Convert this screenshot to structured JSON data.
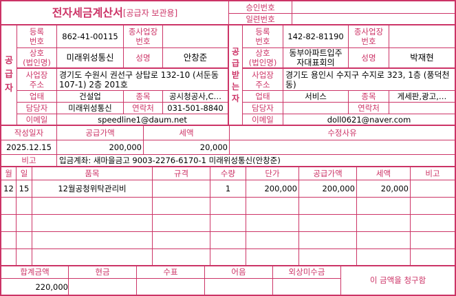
{
  "header": {
    "title": "전자세금계산서",
    "subtitle": "[공급자 보관용]",
    "approval_label": "승인번호",
    "approval_value": "",
    "serial_label": "일련번호",
    "serial_value": ""
  },
  "supplier": {
    "section_label": "공\n급\n자",
    "reg_label": "등록\n번호",
    "reg_value": "862-41-00115",
    "sub_label": "종사업장\n번호",
    "sub_value": "",
    "name_label": "상호\n(법인명)",
    "name_value": "미래위성통신",
    "rep_label": "성명",
    "rep_value": "안창준",
    "addr_label": "사업장\n주소",
    "addr_value": "경기도 수원시 권선구 상탑로 132-10 (서둔동 107-1) 2층 201호",
    "biz_label": "업태",
    "biz_value": "건설업",
    "item_label": "종목",
    "item_value": "공시청공사,C…",
    "contact_label": "담당자",
    "contact_value": "미래위성통신",
    "phone_label": "연락처",
    "phone_value": "031-501-8840",
    "email_label": "이메일",
    "email_value": "speedline1@daum.net"
  },
  "receiver": {
    "section_label": "공\n급\n받\n는\n자",
    "reg_label": "등록\n번호",
    "reg_value": "142-82-81190",
    "sub_label": "종사업장\n번호",
    "sub_value": "",
    "name_label": "상호\n(법인명)",
    "name_value": "동부아파트입주\n자대표회의",
    "rep_label": "성명",
    "rep_value": "박재현",
    "addr_label": "사업장\n주소",
    "addr_value": "경기도 용인시 수지구 수지로 323, 1층 (풍덕천동)",
    "biz_label": "업태",
    "biz_value": "서비스",
    "item_label": "종목",
    "item_value": "게세판,광고,…",
    "contact_label": "담당자",
    "contact_value": "",
    "phone_label": "연락처",
    "phone_value": "",
    "email_label": "이메일",
    "email_value": "doll0621@naver.com"
  },
  "summary": {
    "date_label": "작성일자",
    "date_value": "2025.12.15",
    "supply_label": "공급가액",
    "supply_value": "200,000",
    "tax_label": "세액",
    "tax_value": "20,000",
    "reason_label": "수정사유",
    "reason_value": "",
    "note_label": "비고",
    "note_value": "입금계좌: 새마을금고 9003-2276-6170-1 미래위성통신(안창준)"
  },
  "items": {
    "headers": [
      "월",
      "일",
      "품목",
      "규격",
      "수량",
      "단가",
      "공급가액",
      "세액",
      "비고"
    ],
    "rows": [
      [
        "12",
        "15",
        "12월공청위탁관리비",
        "",
        "1",
        "200,000",
        "200,000",
        "20,000",
        ""
      ],
      [
        "",
        "",
        "",
        "",
        "",
        "",
        "",
        "",
        ""
      ],
      [
        "",
        "",
        "",
        "",
        "",
        "",
        "",
        "",
        ""
      ],
      [
        "",
        "",
        "",
        "",
        "",
        "",
        "",
        "",
        ""
      ],
      [
        "",
        "",
        "",
        "",
        "",
        "",
        "",
        "",
        ""
      ]
    ]
  },
  "totals": {
    "total_label": "합계금액",
    "total_value": "220,000",
    "cash_label": "현금",
    "cash_value": "",
    "check_label": "수표",
    "check_value": "",
    "note_label": "어음",
    "note_value": "",
    "credit_label": "외상미수금",
    "credit_value": "",
    "claim_text": "이 금액을 청구함"
  },
  "colors": {
    "accent": "#cc3366"
  }
}
